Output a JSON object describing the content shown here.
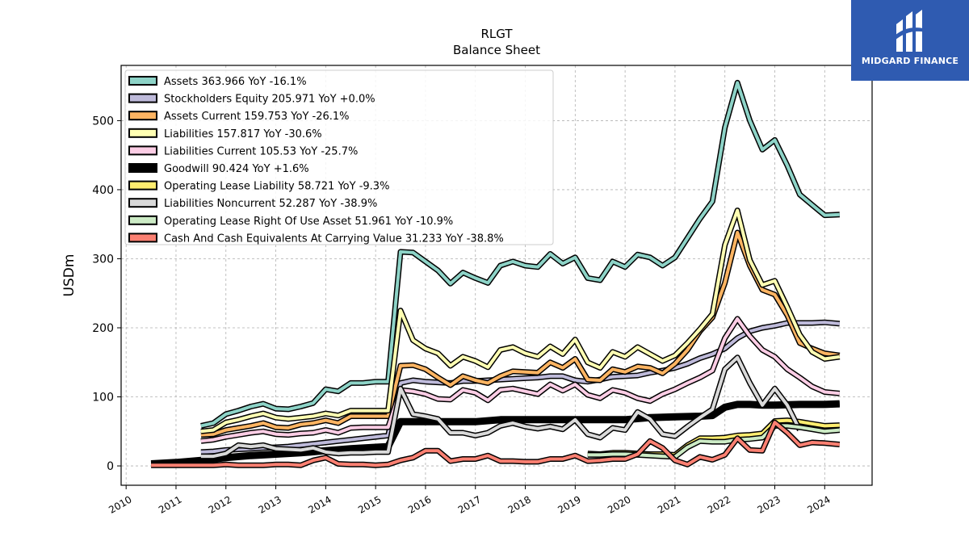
{
  "logo": {
    "text": "MIDGARD FINANCE"
  },
  "chart_data": {
    "type": "line",
    "title": "RLGT",
    "subtitle": "Balance  Sheet",
    "ylabel": "USDm",
    "xlabel": "",
    "ylim": [
      -28,
      580
    ],
    "xlim": [
      2009.9,
      2024.95
    ],
    "yticks": [
      0,
      100,
      200,
      300,
      400,
      500
    ],
    "xticks": [
      2010,
      2011,
      2012,
      2013,
      2014,
      2015,
      2016,
      2017,
      2018,
      2019,
      2020,
      2021,
      2022,
      2023,
      2024
    ],
    "grid": true,
    "legend_position": "top-left",
    "series": [
      {
        "name": "Assets  363.966 YoY -16.1%",
        "color": "#8dd3c7",
        "x": [
          2011.5,
          2011.75,
          2012.0,
          2012.25,
          2012.5,
          2012.75,
          2013.0,
          2013.25,
          2013.5,
          2013.75,
          2014.0,
          2014.25,
          2014.5,
          2014.75,
          2015.0,
          2015.25,
          2015.5,
          2015.75,
          2016.0,
          2016.25,
          2016.5,
          2016.75,
          2017.0,
          2017.25,
          2017.5,
          2017.75,
          2018.0,
          2018.25,
          2018.5,
          2018.75,
          2019.0,
          2019.25,
          2019.5,
          2019.75,
          2020.0,
          2020.25,
          2020.5,
          2020.75,
          2021.0,
          2021.25,
          2021.5,
          2021.75,
          2022.0,
          2022.25,
          2022.5,
          2022.75,
          2023.0,
          2023.25,
          2023.5,
          2023.75,
          2024.0,
          2024.3
        ],
        "values": [
          58,
          62,
          75,
          80,
          86,
          90,
          83,
          82,
          86,
          91,
          111,
          108,
          120,
          120,
          122,
          122,
          310,
          309,
          296,
          283,
          264,
          280,
          272,
          265,
          290,
          296,
          290,
          288,
          307,
          293,
          302,
          272,
          269,
          296,
          288,
          306,
          302,
          290,
          302,
          330,
          358,
          383,
          490,
          555,
          500,
          458,
          472,
          435,
          393,
          378,
          363,
          364
        ]
      },
      {
        "name": "Stockholders Equity  205.971 YoY +0.0%",
        "color": "#bebada",
        "x": [
          2011.5,
          2011.75,
          2012.0,
          2012.25,
          2012.5,
          2012.75,
          2013.0,
          2013.25,
          2013.5,
          2013.75,
          2014.0,
          2014.25,
          2014.5,
          2014.75,
          2015.0,
          2015.25,
          2015.5,
          2015.75,
          2016.0,
          2016.25,
          2016.5,
          2016.75,
          2017.0,
          2017.25,
          2017.5,
          2017.75,
          2018.0,
          2018.25,
          2018.5,
          2018.75,
          2019.0,
          2019.25,
          2019.5,
          2019.75,
          2020.0,
          2020.25,
          2020.5,
          2020.75,
          2021.0,
          2021.25,
          2021.5,
          2021.75,
          2022.0,
          2022.25,
          2022.5,
          2022.75,
          2023.0,
          2023.25,
          2023.5,
          2023.75,
          2024.0,
          2024.3
        ],
        "values": [
          20,
          21,
          23,
          24,
          25,
          26,
          27,
          28,
          30,
          32,
          34,
          36,
          38,
          40,
          42,
          44,
          120,
          124,
          122,
          121,
          120,
          123,
          123,
          124,
          125,
          126,
          127,
          128,
          130,
          130,
          124,
          122,
          125,
          129,
          130,
          131,
          135,
          138,
          142,
          148,
          156,
          162,
          170,
          185,
          195,
          200,
          203,
          207,
          207,
          207,
          208,
          206
        ]
      },
      {
        "name": "Assets Current  159.753 YoY -26.1%",
        "color": "#fdb462",
        "x": [
          2011.5,
          2011.75,
          2012.0,
          2012.25,
          2012.5,
          2012.75,
          2013.0,
          2013.25,
          2013.5,
          2013.75,
          2014.0,
          2014.25,
          2014.5,
          2014.75,
          2015.0,
          2015.25,
          2015.5,
          2015.75,
          2016.0,
          2016.25,
          2016.5,
          2016.75,
          2017.0,
          2017.25,
          2017.5,
          2017.75,
          2018.0,
          2018.25,
          2018.5,
          2018.75,
          2019.0,
          2019.25,
          2019.5,
          2019.75,
          2020.0,
          2020.25,
          2020.5,
          2020.75,
          2021.0,
          2021.25,
          2021.5,
          2021.75,
          2022.0,
          2022.25,
          2022.5,
          2022.75,
          2023.0,
          2023.25,
          2023.5,
          2023.75,
          2024.0,
          2024.3
        ],
        "values": [
          45,
          46,
          52,
          55,
          58,
          62,
          56,
          55,
          60,
          62,
          66,
          62,
          72,
          72,
          72,
          72,
          145,
          146,
          140,
          128,
          117,
          130,
          124,
          120,
          130,
          137,
          136,
          135,
          150,
          142,
          155,
          125,
          124,
          140,
          136,
          144,
          142,
          134,
          148,
          168,
          195,
          215,
          265,
          338,
          290,
          255,
          248,
          218,
          178,
          170,
          163,
          160
        ]
      },
      {
        "name": "Liabilities  157.817 YoY -30.6%",
        "color": "#ffffb3",
        "x": [
          2011.5,
          2011.75,
          2012.0,
          2012.25,
          2012.5,
          2012.75,
          2013.0,
          2013.25,
          2013.5,
          2013.75,
          2014.0,
          2014.25,
          2014.5,
          2014.75,
          2015.0,
          2015.25,
          2015.5,
          2015.75,
          2016.0,
          2016.25,
          2016.5,
          2016.75,
          2017.0,
          2017.25,
          2017.5,
          2017.75,
          2018.0,
          2018.25,
          2018.5,
          2018.75,
          2019.0,
          2019.25,
          2019.5,
          2019.75,
          2020.0,
          2020.25,
          2020.5,
          2020.75,
          2021.0,
          2021.25,
          2021.5,
          2021.75,
          2022.0,
          2022.25,
          2022.5,
          2022.75,
          2023.0,
          2023.25,
          2023.5,
          2023.75,
          2024.0,
          2024.3
        ],
        "values": [
          50,
          52,
          63,
          67,
          72,
          76,
          70,
          68,
          70,
          72,
          76,
          73,
          80,
          80,
          80,
          80,
          225,
          182,
          170,
          163,
          145,
          158,
          152,
          143,
          168,
          172,
          163,
          158,
          173,
          162,
          183,
          150,
          142,
          165,
          158,
          172,
          162,
          152,
          160,
          178,
          198,
          220,
          320,
          370,
          298,
          262,
          268,
          230,
          190,
          165,
          155,
          158
        ]
      },
      {
        "name": "Liabilities Current  105.53 YoY -25.7%",
        "color": "#fccde5",
        "x": [
          2011.5,
          2011.75,
          2012.0,
          2012.25,
          2012.5,
          2012.75,
          2013.0,
          2013.25,
          2013.5,
          2013.75,
          2014.0,
          2014.25,
          2014.5,
          2014.75,
          2015.0,
          2015.25,
          2015.5,
          2015.75,
          2016.0,
          2016.25,
          2016.5,
          2016.75,
          2017.0,
          2017.25,
          2017.5,
          2017.75,
          2018.0,
          2018.25,
          2018.5,
          2018.75,
          2019.0,
          2019.25,
          2019.5,
          2019.75,
          2020.0,
          2020.25,
          2020.5,
          2020.75,
          2021.0,
          2021.25,
          2021.5,
          2021.75,
          2022.0,
          2022.25,
          2022.5,
          2022.75,
          2023.0,
          2023.25,
          2023.5,
          2023.75,
          2024.0,
          2024.3
        ],
        "values": [
          36,
          38,
          42,
          45,
          48,
          50,
          46,
          45,
          47,
          48,
          52,
          48,
          55,
          56,
          56,
          56,
          110,
          108,
          104,
          97,
          96,
          110,
          106,
          95,
          110,
          112,
          108,
          104,
          118,
          109,
          118,
          103,
          98,
          110,
          106,
          98,
          94,
          104,
          111,
          120,
          128,
          138,
          185,
          213,
          188,
          168,
          158,
          140,
          128,
          115,
          107,
          105
        ]
      },
      {
        "name": "Goodwill  90.424 YoY +1.6%",
        "color": "#000000",
        "x": [
          2010.5,
          2011.0,
          2011.5,
          2012.0,
          2012.5,
          2013.0,
          2013.5,
          2014.0,
          2014.5,
          2015.0,
          2015.25,
          2015.5,
          2016.0,
          2016.5,
          2017.0,
          2017.5,
          2018.0,
          2018.5,
          2019.0,
          2019.5,
          2020.0,
          2020.5,
          2021.0,
          2021.5,
          2021.75,
          2022.0,
          2022.25,
          2022.5,
          2022.75,
          2023.0,
          2023.5,
          2024.0,
          2024.3
        ],
        "values": [
          3,
          5,
          8,
          12,
          15,
          17,
          19,
          22,
          25,
          27,
          28,
          64,
          64,
          64,
          64,
          67,
          67,
          67,
          67,
          67,
          67,
          70,
          71,
          72,
          73,
          85,
          89,
          89,
          88,
          88,
          89,
          89,
          90
        ]
      },
      {
        "name": "Operating Lease Liability  58.721 YoY -9.3%",
        "color": "#ffed6f",
        "x": [
          2019.25,
          2019.5,
          2019.75,
          2020.0,
          2020.25,
          2020.5,
          2020.75,
          2021.0,
          2021.25,
          2021.5,
          2021.75,
          2022.0,
          2022.25,
          2022.5,
          2022.75,
          2023.0,
          2023.25,
          2023.5,
          2023.75,
          2024.0,
          2024.3
        ],
        "values": [
          18,
          17,
          19,
          19,
          18,
          17,
          17,
          16,
          30,
          40,
          40,
          41,
          44,
          45,
          47,
          65,
          66,
          64,
          61,
          58,
          59
        ]
      },
      {
        "name": "Liabilities Noncurrent  52.287 YoY -38.9%",
        "color": "#d9d9d9",
        "x": [
          2011.5,
          2011.75,
          2012.0,
          2012.25,
          2012.5,
          2012.75,
          2013.0,
          2013.25,
          2013.5,
          2013.75,
          2014.0,
          2014.25,
          2014.5,
          2014.75,
          2015.0,
          2015.25,
          2015.5,
          2015.75,
          2016.0,
          2016.25,
          2016.5,
          2016.75,
          2017.0,
          2017.25,
          2017.5,
          2017.75,
          2018.0,
          2018.25,
          2018.5,
          2018.75,
          2019.0,
          2019.25,
          2019.5,
          2019.75,
          2020.0,
          2020.25,
          2020.5,
          2020.75,
          2021.0,
          2021.25,
          2021.5,
          2021.75,
          2022.0,
          2022.25,
          2022.5,
          2022.75,
          2023.0,
          2023.25,
          2023.5
        ],
        "values": [
          14,
          14,
          18,
          30,
          28,
          30,
          25,
          24,
          23,
          26,
          20,
          18,
          19,
          19,
          20,
          20,
          112,
          75,
          72,
          68,
          48,
          48,
          44,
          48,
          58,
          62,
          57,
          54,
          57,
          53,
          67,
          46,
          41,
          55,
          52,
          78,
          68,
          46,
          43,
          57,
          70,
          82,
          140,
          157,
          120,
          88,
          112,
          88,
          52
        ]
      },
      {
        "name": "Operating Lease Right Of Use Asset  51.961 YoY -10.9%",
        "color": "#ccebc5",
        "x": [
          2019.25,
          2019.5,
          2019.75,
          2020.0,
          2020.25,
          2020.5,
          2020.75,
          2021.0,
          2021.25,
          2021.5,
          2021.75,
          2022.0,
          2022.25,
          2022.5,
          2022.75,
          2023.0,
          2023.25,
          2023.5,
          2023.75,
          2024.0,
          2024.3
        ],
        "values": [
          16,
          16,
          17,
          17,
          16,
          15,
          14,
          13,
          27,
          36,
          35,
          35,
          38,
          39,
          41,
          58,
          58,
          56,
          53,
          50,
          52
        ]
      },
      {
        "name": "Cash And Cash Equivalents At Carrying Value  31.233 YoY -38.8%",
        "color": "#fb8072",
        "x": [
          2010.5,
          2010.75,
          2011.0,
          2011.25,
          2011.5,
          2011.75,
          2012.0,
          2012.25,
          2012.5,
          2012.75,
          2013.0,
          2013.25,
          2013.5,
          2013.75,
          2014.0,
          2014.25,
          2014.5,
          2014.75,
          2015.0,
          2015.25,
          2015.5,
          2015.75,
          2016.0,
          2016.25,
          2016.5,
          2016.75,
          2017.0,
          2017.25,
          2017.5,
          2017.75,
          2018.0,
          2018.25,
          2018.5,
          2018.75,
          2019.0,
          2019.25,
          2019.5,
          2019.75,
          2020.0,
          2020.25,
          2020.5,
          2020.75,
          2021.0,
          2021.25,
          2021.5,
          2021.75,
          2022.0,
          2022.25,
          2022.5,
          2022.75,
          2023.0,
          2023.25,
          2023.5,
          2023.75,
          2024.0,
          2024.3
        ],
        "values": [
          1,
          1,
          1,
          1,
          1,
          1,
          2,
          1,
          1,
          1,
          2,
          2,
          1,
          8,
          12,
          3,
          2,
          2,
          1,
          2,
          8,
          12,
          22,
          22,
          7,
          10,
          10,
          15,
          7,
          7,
          6,
          6,
          10,
          10,
          15,
          7,
          8,
          10,
          10,
          17,
          36,
          26,
          8,
          2,
          13,
          9,
          16,
          40,
          23,
          22,
          63,
          48,
          30,
          34,
          33,
          31
        ]
      }
    ]
  }
}
